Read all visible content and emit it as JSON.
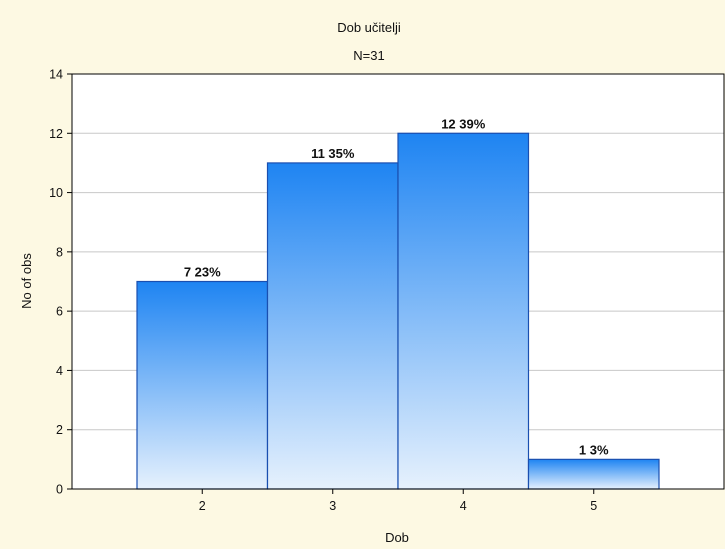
{
  "chart_data": {
    "type": "bar",
    "title": "Dob učitelji",
    "subtitle": "N=31",
    "xlabel": "Dob",
    "ylabel": "No of obs",
    "categories": [
      "2",
      "3",
      "4",
      "5"
    ],
    "values": [
      7,
      11,
      12,
      1
    ],
    "data_labels": [
      "7 23%",
      "11 35%",
      "12 39%",
      "1 3%"
    ],
    "ylim": [
      0,
      14
    ],
    "yticks": [
      "0",
      "2",
      "4",
      "6",
      "8",
      "10",
      "12",
      "14"
    ],
    "grid": true,
    "legend": "none",
    "colors": {
      "background": "#fdf9e3",
      "plot_background": "#ffffff",
      "bar_top": "#1e84f2",
      "bar_bottom": "#e6f1fd",
      "bar_border": "#1a4fb0",
      "grid": "#c8c8c8"
    }
  }
}
